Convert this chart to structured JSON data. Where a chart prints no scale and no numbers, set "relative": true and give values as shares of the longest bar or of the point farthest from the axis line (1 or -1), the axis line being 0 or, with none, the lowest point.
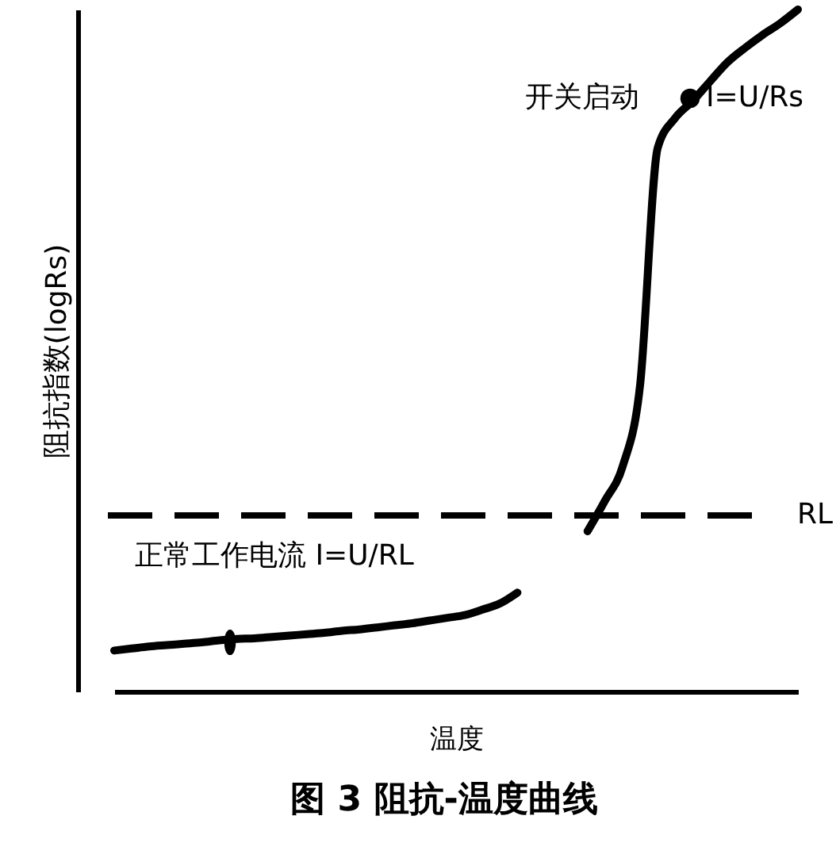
{
  "chart_data": {
    "type": "line",
    "title": "图 3 阻抗-温度曲线",
    "xlabel": "温度",
    "ylabel": "阻抗指数(logRs)",
    "relative": true,
    "categories": [
      null,
      null,
      null,
      null,
      null,
      null,
      null,
      null,
      null,
      null,
      null,
      null,
      null,
      null,
      null,
      null,
      null,
      null,
      null,
      null,
      null,
      null,
      null,
      null,
      null,
      null,
      null,
      null,
      null,
      null,
      null,
      null,
      null,
      null,
      null,
      null,
      null,
      null,
      null,
      null
    ],
    "series": [
      {
        "color": "#000000",
        "values": [
          0.06,
          0.063,
          0.066,
          0.068,
          0.07,
          0.072,
          0.075,
          0.077,
          0.078,
          0.08,
          0.082,
          0.084,
          0.086,
          0.089,
          0.091,
          0.094,
          0.097,
          0.1,
          0.104,
          0.108,
          0.112,
          0.12,
          0.129,
          0.145,
          null,
          null,
          null,
          0.235,
          0.28,
          0.33,
          0.45,
          0.797,
          0.841,
          0.866,
          0.895,
          0.923,
          0.944,
          0.963,
          0.98,
          1.0
        ]
      }
    ],
    "ref_lines": [
      {
        "axis": "y",
        "value": 0.258,
        "label": "RL",
        "line_style": "dashed",
        "color": "#000000"
      }
    ],
    "annotations": [
      "正常工作电流 I=U/RL",
      "开关启动",
      "I=U/Rs"
    ],
    "marker": "none",
    "line_style": "solid",
    "grid": false
  }
}
